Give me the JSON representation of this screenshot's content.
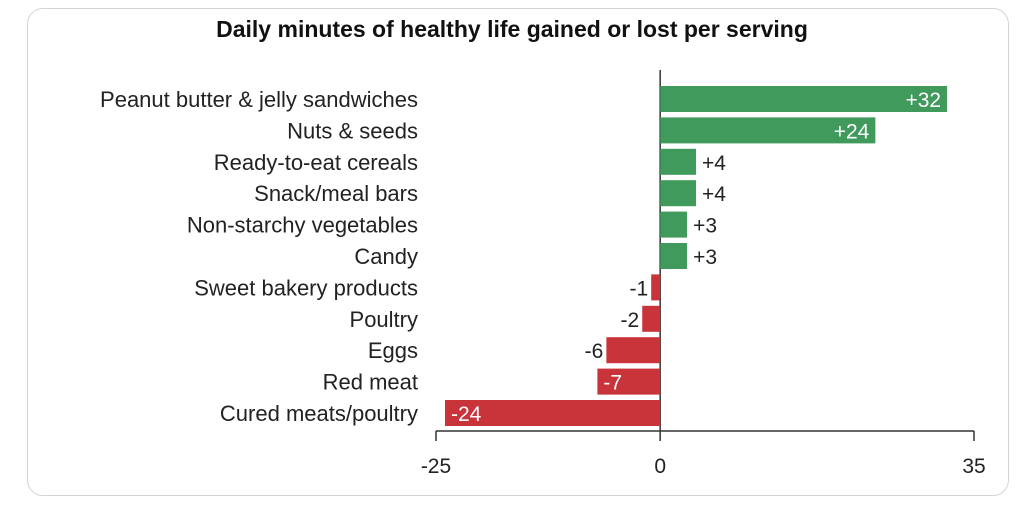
{
  "chart_data": {
    "type": "bar",
    "orientation": "horizontal",
    "title": "Daily minutes of healthy life gained or lost per serving",
    "categories": [
      "Peanut butter & jelly sandwiches",
      "Nuts & seeds",
      "Ready-to-eat cereals",
      "Snack/meal bars",
      "Non-starchy vegetables",
      "Candy",
      "Sweet bakery products",
      "Poultry",
      "Eggs",
      "Red meat",
      "Cured meats/poultry"
    ],
    "values": [
      32,
      24,
      4,
      4,
      3,
      3,
      -1,
      -2,
      -6,
      -7,
      -24
    ],
    "value_labels": [
      "+32",
      "+24",
      "+4",
      "+4",
      "+3",
      "+3",
      "-1",
      "-2",
      "-6",
      "-7",
      "-24"
    ],
    "xlim": [
      -25,
      35
    ],
    "xticks": [
      -25,
      0,
      35
    ],
    "xtick_labels": [
      "-25",
      "0",
      "35"
    ],
    "grid": false,
    "colors": {
      "positive": "#3f9a5c",
      "negative": "#c9333a",
      "axis": "#333333"
    }
  }
}
